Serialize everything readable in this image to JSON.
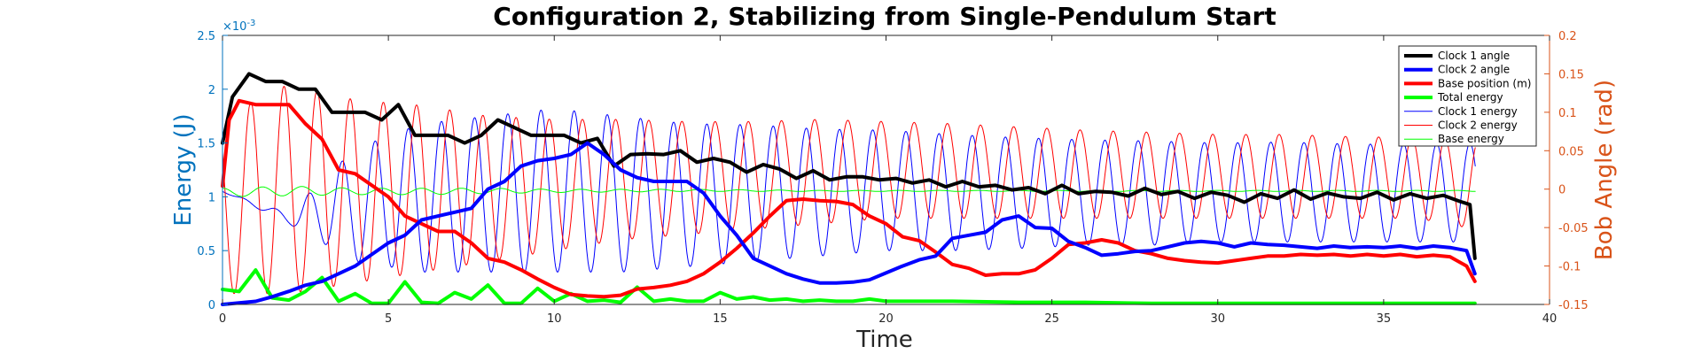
{
  "chart_data": {
    "type": "line",
    "title": "Configuration 2, Stabilizing from Single-Pendulum Start",
    "xlabel": "Time",
    "ylabel_left": "Energy (J)",
    "ylabel_right": "Bob Angle (rad)",
    "left_axis_multiplier": "×10",
    "left_axis_exponent": "-3",
    "xlim": [
      0,
      40
    ],
    "xticks": [
      0,
      5,
      10,
      15,
      20,
      25,
      30,
      35,
      40
    ],
    "ylim_left": [
      0,
      2.5
    ],
    "yticks_left": [
      0,
      0.5,
      1,
      1.5,
      2,
      2.5
    ],
    "ylim_right": [
      -0.15,
      0.2
    ],
    "yticks_right": [
      -0.15,
      -0.1,
      -0.05,
      0,
      0.05,
      0.1,
      0.15,
      0.2
    ],
    "legend_placement": "top-right",
    "colors": {
      "left_axis": "#0072BD",
      "right_axis": "#D95319",
      "black": "#000000",
      "blue": "#0000FF",
      "red": "#FF0000",
      "green": "#00FF00"
    },
    "series": [
      {
        "name": "Clock 1 angle",
        "axis": "right",
        "color": "#000000",
        "width": 4,
        "x": [
          0,
          0.3,
          0.8,
          1.3,
          1.8,
          2.3,
          2.8,
          3.3,
          3.8,
          4.3,
          4.8,
          5.3,
          5.8,
          6.3,
          6.8,
          7.3,
          7.8,
          8.3,
          8.8,
          9.3,
          9.8,
          10.3,
          10.8,
          11.3,
          11.8,
          12.3,
          12.8,
          13.3,
          13.8,
          14.3,
          14.8,
          15.3,
          15.8,
          16.3,
          16.8,
          17.3,
          17.8,
          18.3,
          18.8,
          19.3,
          19.8,
          20.3,
          20.8,
          21.3,
          21.8,
          22.3,
          22.8,
          23.3,
          23.8,
          24.3,
          24.8,
          25.3,
          25.8,
          26.3,
          26.8,
          27.3,
          27.8,
          28.3,
          28.8,
          29.3,
          29.8,
          30.3,
          30.8,
          31.3,
          31.8,
          32.3,
          32.8,
          33.3,
          33.8,
          34.3,
          34.8,
          35.3,
          35.8,
          36.3,
          36.8,
          37.3,
          37.6,
          37.75
        ],
        "y": [
          0.06,
          0.12,
          0.15,
          0.14,
          0.14,
          0.13,
          0.13,
          0.1,
          0.1,
          0.1,
          0.09,
          0.11,
          0.07,
          0.07,
          0.07,
          0.06,
          0.07,
          0.09,
          0.08,
          0.07,
          0.07,
          0.07,
          0.06,
          0.066,
          0.03,
          0.045,
          0.046,
          0.045,
          0.05,
          0.035,
          0.04,
          0.035,
          0.022,
          0.032,
          0.026,
          0.014,
          0.024,
          0.012,
          0.016,
          0.016,
          0.012,
          0.014,
          0.008,
          0.012,
          0.003,
          0.01,
          0.003,
          0.005,
          -0.001,
          0.002,
          -0.006,
          0.005,
          -0.006,
          -0.003,
          -0.004,
          -0.009,
          0.001,
          -0.007,
          -0.003,
          -0.012,
          -0.004,
          -0.008,
          -0.017,
          -0.006,
          -0.012,
          -0.001,
          -0.013,
          -0.005,
          -0.01,
          -0.012,
          -0.004,
          -0.014,
          -0.006,
          -0.012,
          -0.008,
          -0.016,
          -0.02,
          -0.09
        ]
      },
      {
        "name": "Clock 2 angle",
        "axis": "right",
        "color": "#0000FF",
        "width": 4,
        "x": [
          0,
          0.5,
          1,
          1.5,
          2,
          2.5,
          3,
          3.5,
          4,
          4.5,
          5,
          5.5,
          6,
          6.5,
          7,
          7.5,
          8,
          8.5,
          9,
          9.5,
          10,
          10.5,
          11,
          11.5,
          12,
          12.5,
          13,
          13.5,
          14,
          14.5,
          15,
          15.5,
          16,
          16.5,
          17,
          17.5,
          18,
          18.5,
          19,
          19.5,
          20,
          20.5,
          21,
          21.5,
          22,
          22.5,
          23,
          23.5,
          24,
          24.5,
          25,
          25.5,
          26,
          26.5,
          27,
          27.5,
          28,
          28.5,
          29,
          29.5,
          30,
          30.5,
          31,
          31.5,
          32,
          32.5,
          33,
          33.5,
          34,
          34.5,
          35,
          35.5,
          36,
          36.5,
          37,
          37.5,
          37.75
        ],
        "y": [
          -0.15,
          -0.148,
          -0.146,
          -0.14,
          -0.133,
          -0.125,
          -0.12,
          -0.11,
          -0.1,
          -0.085,
          -0.07,
          -0.06,
          -0.04,
          -0.035,
          -0.03,
          -0.025,
          0,
          0.01,
          0.03,
          0.037,
          0.04,
          0.045,
          0.06,
          0.045,
          0.025,
          0.015,
          0.01,
          0.01,
          0.01,
          -0.005,
          -0.035,
          -0.06,
          -0.09,
          -0.1,
          -0.11,
          -0.117,
          -0.122,
          -0.122,
          -0.121,
          -0.118,
          -0.109,
          -0.1,
          -0.092,
          -0.087,
          -0.064,
          -0.06,
          -0.056,
          -0.04,
          -0.035,
          -0.05,
          -0.051,
          -0.068,
          -0.076,
          -0.086,
          -0.084,
          -0.081,
          -0.08,
          -0.075,
          -0.07,
          -0.068,
          -0.07,
          -0.075,
          -0.07,
          -0.072,
          -0.073,
          -0.075,
          -0.077,
          -0.074,
          -0.076,
          -0.075,
          -0.076,
          -0.074,
          -0.077,
          -0.074,
          -0.076,
          -0.08,
          -0.11
        ]
      },
      {
        "name": "Base position (m)",
        "axis": "right",
        "color": "#FF0000",
        "width": 4,
        "x": [
          0,
          0.2,
          0.5,
          1,
          1.5,
          2,
          2.5,
          3,
          3.5,
          4,
          4.5,
          5,
          5.5,
          6,
          6.5,
          7,
          7.5,
          8,
          8.5,
          9,
          9.5,
          10,
          10.5,
          11,
          11.5,
          12,
          12.5,
          13,
          13.5,
          14,
          14.5,
          15,
          15.5,
          16,
          16.5,
          17,
          17.5,
          18,
          18.5,
          19,
          19.5,
          20,
          20.5,
          21,
          21.5,
          22,
          22.5,
          23,
          23.5,
          24,
          24.5,
          25,
          25.5,
          26,
          26.5,
          27,
          27.5,
          28,
          28.5,
          29,
          29.5,
          30,
          30.5,
          31,
          31.5,
          32,
          32.5,
          33,
          33.5,
          34,
          34.5,
          35,
          35.5,
          36,
          36.5,
          37,
          37.5,
          37.75
        ],
        "y": [
          0.004,
          0.09,
          0.115,
          0.11,
          0.11,
          0.11,
          0.085,
          0.065,
          0.025,
          0.02,
          0.005,
          -0.01,
          -0.035,
          -0.045,
          -0.055,
          -0.055,
          -0.07,
          -0.09,
          -0.095,
          -0.105,
          -0.117,
          -0.128,
          -0.137,
          -0.139,
          -0.14,
          -0.138,
          -0.13,
          -0.128,
          -0.125,
          -0.12,
          -0.11,
          -0.095,
          -0.077,
          -0.057,
          -0.035,
          -0.015,
          -0.013,
          -0.015,
          -0.016,
          -0.02,
          -0.035,
          -0.045,
          -0.062,
          -0.067,
          -0.082,
          -0.098,
          -0.103,
          -0.112,
          -0.11,
          -0.11,
          -0.105,
          -0.09,
          -0.072,
          -0.07,
          -0.066,
          -0.07,
          -0.08,
          -0.084,
          -0.09,
          -0.093,
          -0.095,
          -0.096,
          -0.093,
          -0.09,
          -0.087,
          -0.087,
          -0.085,
          -0.086,
          -0.085,
          -0.087,
          -0.085,
          -0.087,
          -0.085,
          -0.088,
          -0.086,
          -0.088,
          -0.1,
          -0.12
        ]
      },
      {
        "name": "Total energy",
        "axis": "left",
        "color": "#00FF00",
        "width": 4,
        "x": [
          0,
          0.5,
          1,
          1.5,
          2,
          2.5,
          3,
          3.5,
          4,
          4.5,
          5,
          5.5,
          6,
          6.5,
          7,
          7.5,
          8,
          8.5,
          9,
          9.5,
          10,
          10.5,
          11,
          11.5,
          12,
          12.5,
          13,
          13.5,
          14,
          14.5,
          15,
          15.5,
          16,
          16.5,
          17,
          17.5,
          18,
          18.5,
          19,
          19.5,
          20,
          22,
          24,
          26,
          28,
          30,
          32,
          34,
          36,
          37.75
        ],
        "y": [
          0.00014,
          0.00012,
          0.00032,
          6e-05,
          4e-05,
          0.00012,
          0.00025,
          3e-05,
          0.0001,
          1e-05,
          1e-05,
          0.00021,
          2e-05,
          1e-05,
          0.00011,
          5e-05,
          0.00018,
          1e-05,
          1e-05,
          0.00015,
          3e-05,
          0.0001,
          3e-05,
          4e-05,
          2e-05,
          0.00016,
          3e-05,
          5e-05,
          3e-05,
          3e-05,
          0.00011,
          5e-05,
          7e-05,
          4e-05,
          5e-05,
          3e-05,
          4e-05,
          3e-05,
          3e-05,
          5e-05,
          3e-05,
          3e-05,
          2e-05,
          2e-05,
          1e-05,
          1e-05,
          1e-05,
          1e-05,
          1e-05,
          1e-05
        ]
      },
      {
        "name": "Clock 1 energy",
        "axis": "left",
        "color": "#0000FF",
        "width": 1,
        "oscillating": true,
        "period": 1.0,
        "phase": 0.8,
        "x": [
          0,
          2,
          4,
          6,
          8,
          10,
          12,
          14,
          16,
          18,
          20,
          22,
          24,
          26,
          28,
          30,
          32,
          34,
          36,
          37.75
        ],
        "upper": [
          0.00105,
          0.00085,
          0.00145,
          0.00168,
          0.00175,
          0.00182,
          0.00175,
          0.00168,
          0.00167,
          0.00163,
          0.00162,
          0.00158,
          0.00155,
          0.00153,
          0.00152,
          0.0015,
          0.00151,
          0.00149,
          0.00149,
          0.0015
        ],
        "lower": [
          0.00105,
          0.00075,
          0.0004,
          0.0003,
          0.0003,
          0.0003,
          0.0003,
          0.00035,
          0.0004,
          0.00045,
          0.0005,
          0.0005,
          0.00052,
          0.00055,
          0.00055,
          0.00058,
          0.00058,
          0.00058,
          0.00058,
          0.00058
        ]
      },
      {
        "name": "Clock 2 energy",
        "axis": "left",
        "color": "#FF0000",
        "width": 1,
        "oscillating": true,
        "period": 1.0,
        "phase": 0.3,
        "x": [
          0,
          2,
          4,
          6,
          8,
          10,
          12,
          14,
          16,
          18,
          20,
          22,
          24,
          26,
          28,
          30,
          32,
          34,
          36,
          37.75
        ],
        "upper": [
          0.00175,
          0.00205,
          0.0019,
          0.00185,
          0.00175,
          0.00172,
          0.00172,
          0.0017,
          0.0017,
          0.00172,
          0.0017,
          0.00168,
          0.00165,
          0.00162,
          0.0016,
          0.00158,
          0.00158,
          0.00156,
          0.00155,
          0.00152
        ],
        "lower": [
          0.0001,
          0.0001,
          0.0002,
          0.0003,
          0.0004,
          0.0005,
          0.0006,
          0.00065,
          0.0007,
          0.00075,
          0.0008,
          0.0008,
          0.0008,
          0.0008,
          0.0008,
          0.0008,
          0.0008,
          0.0008,
          0.0008,
          0.0007
        ]
      },
      {
        "name": "Base energy",
        "axis": "left",
        "color": "#00FF00",
        "width": 1,
        "oscillating": true,
        "period": 1.2,
        "phase": 0.0,
        "x": [
          0,
          2,
          4,
          6,
          8,
          10,
          14,
          18,
          22,
          26,
          30,
          34,
          37.75
        ],
        "upper": [
          0.00108,
          0.0011,
          0.00108,
          0.00108,
          0.00108,
          0.00107,
          0.00107,
          0.00106,
          0.00106,
          0.00106,
          0.00106,
          0.00106,
          0.00106
        ],
        "lower": [
          0.001,
          0.00101,
          0.00102,
          0.00102,
          0.00103,
          0.00104,
          0.00105,
          0.00105,
          0.00105,
          0.00105,
          0.00105,
          0.00105,
          0.00105
        ]
      }
    ]
  }
}
